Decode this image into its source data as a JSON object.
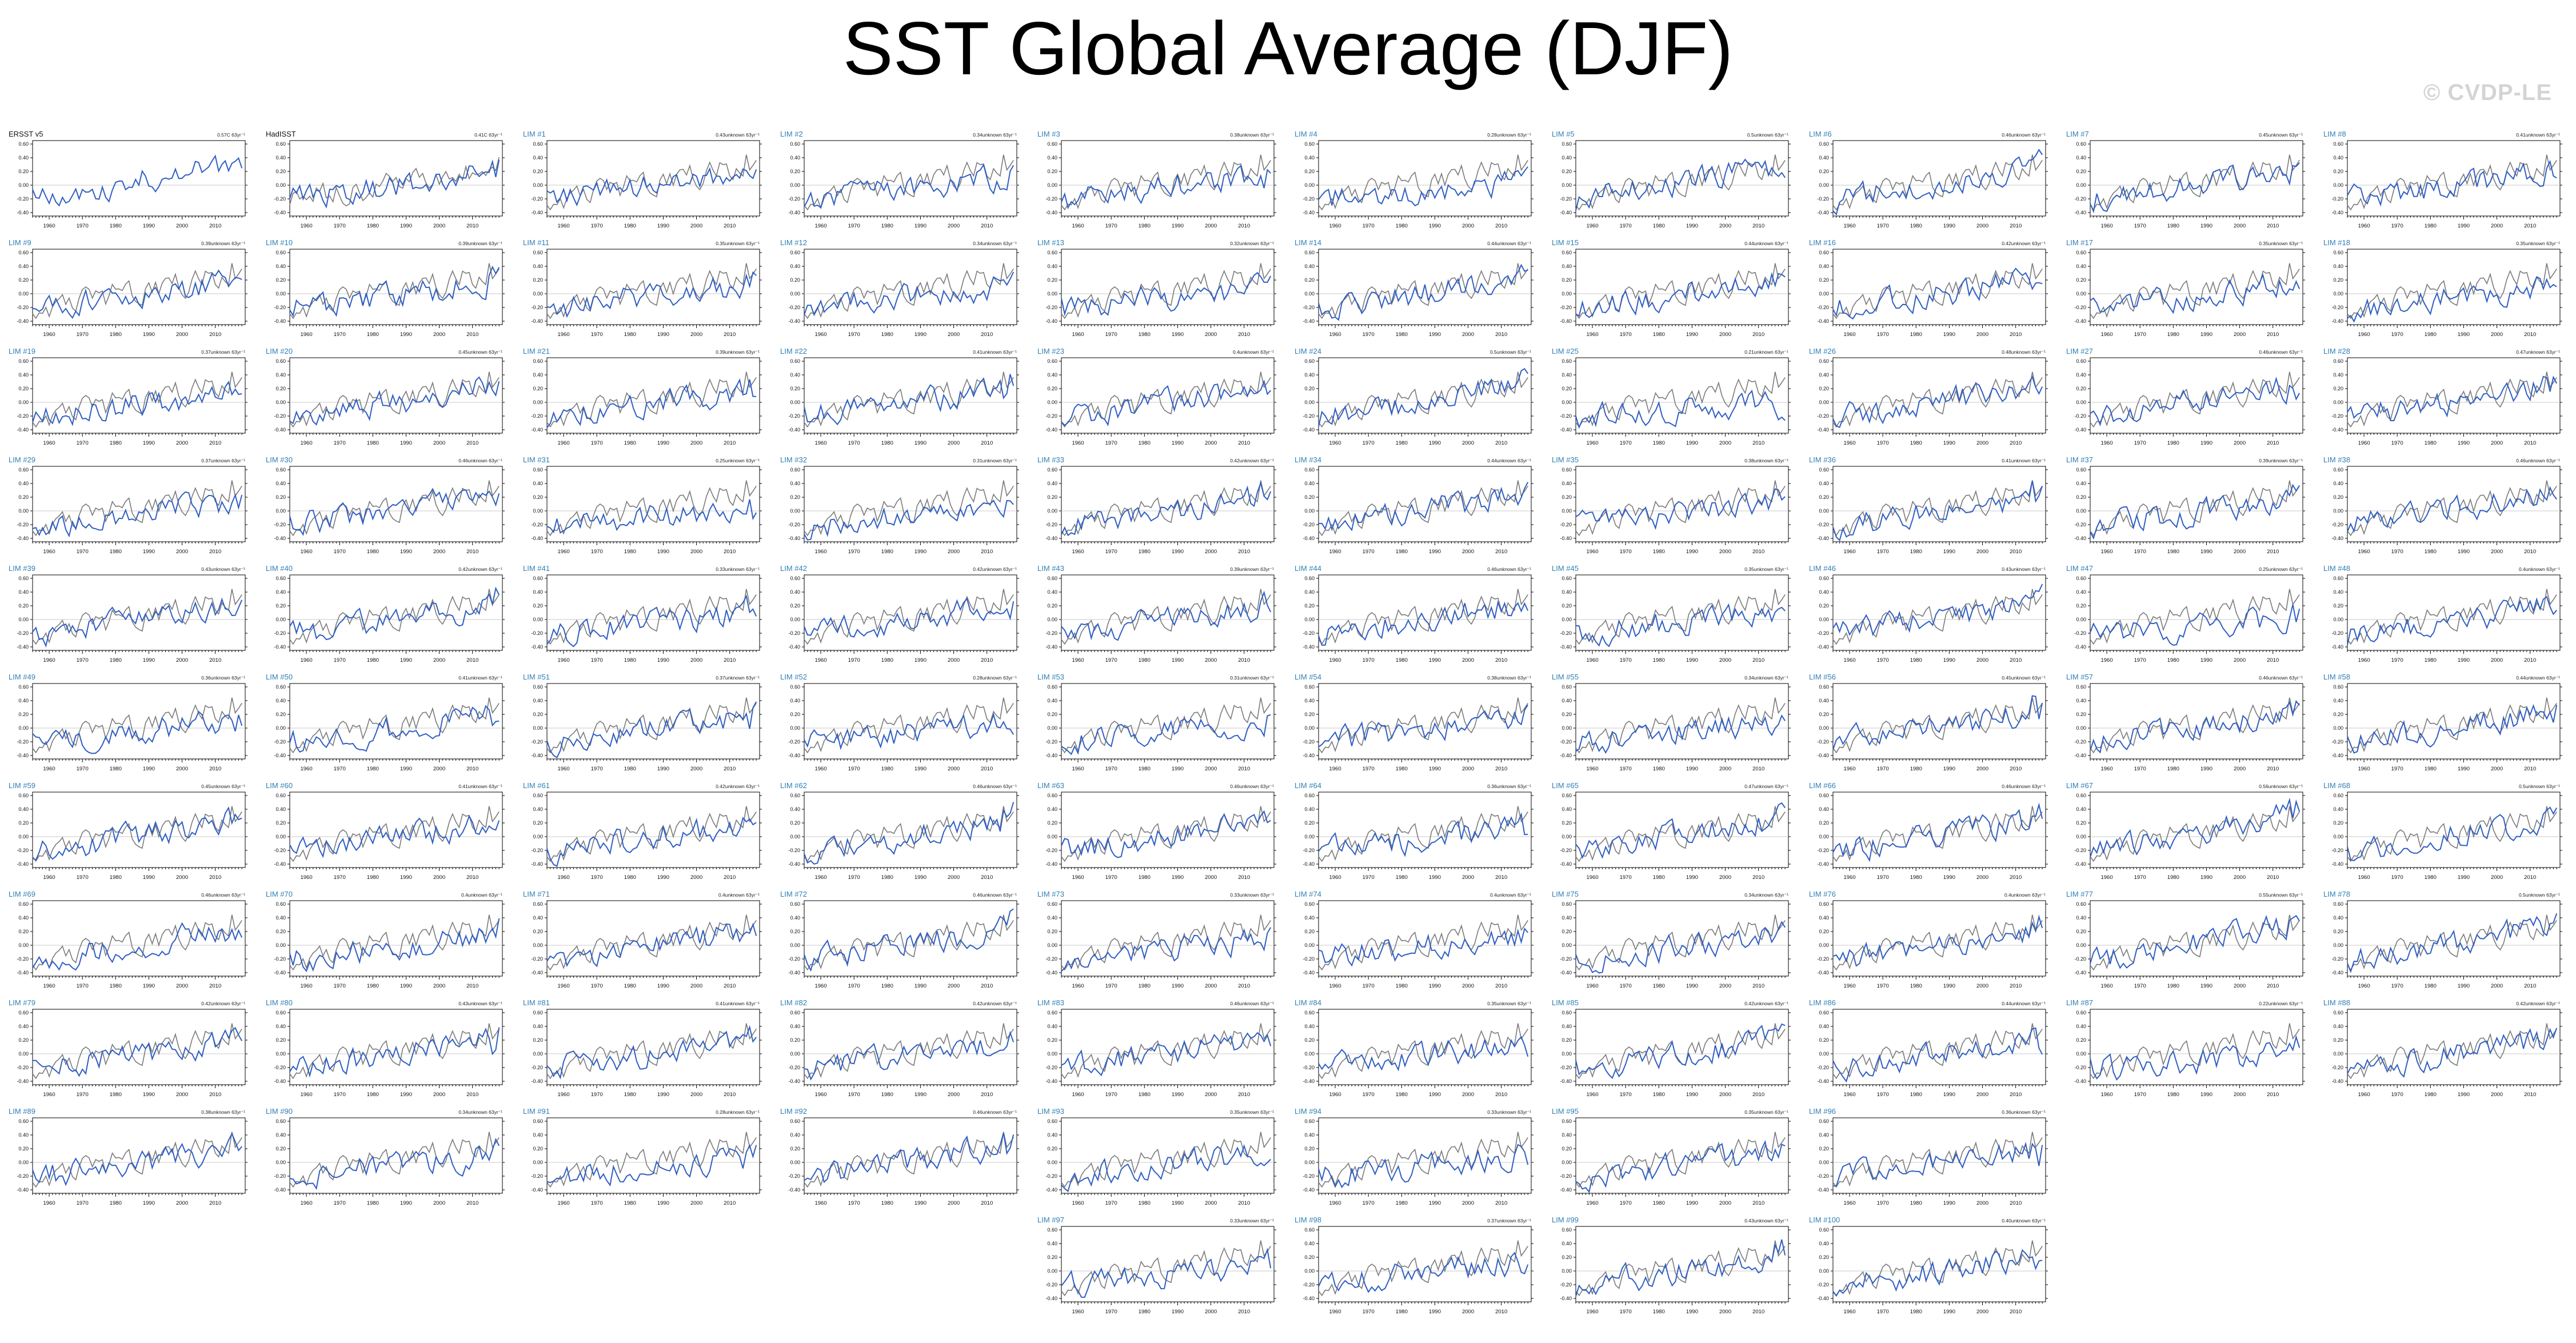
{
  "page": {
    "title": "SST Global Average (DJF)",
    "watermark": "© CVDP-LE"
  },
  "colors": {
    "observed": "#7a7a7a",
    "model": "#2f5ec2",
    "label_obs": "#111111",
    "label_model": "#2f7fb5",
    "zero_line": "#c8c8c8"
  },
  "chart_data": {
    "type": "line",
    "xlim": [
      1955,
      2019
    ],
    "ylim": [
      -0.45,
      0.65
    ],
    "xticks": [
      1960,
      1970,
      1980,
      1990,
      2000,
      2010
    ],
    "xtick_labels": [
      "1960",
      "1970",
      "1980",
      "1990",
      "2000",
      "2010"
    ],
    "yticks": [
      -0.4,
      -0.2,
      0.0,
      0.2,
      0.4,
      0.6
    ],
    "ytick_labels": [
      "-0.40",
      "-0.20",
      "0.00",
      "0.20",
      "0.40",
      "0.60"
    ],
    "years": [
      1955,
      2018
    ],
    "panels": [
      {
        "label": "ERSST v5",
        "trend": "0.57C 63yr⁻¹",
        "obs": true
      },
      {
        "label": "HadISST",
        "trend": "0.41C 63yr⁻¹",
        "obs": true
      },
      {
        "label": "LIM #1",
        "trend": "0.43unknown 63yr⁻¹"
      },
      {
        "label": "LIM #2",
        "trend": "0.34unknown 63yr⁻¹"
      },
      {
        "label": "LIM #3",
        "trend": "0.38unknown 63yr⁻¹"
      },
      {
        "label": "LIM #4",
        "trend": "0.28unknown 63yr⁻¹"
      },
      {
        "label": "LIM #5",
        "trend": "0.5unknown 63yr⁻¹"
      },
      {
        "label": "LIM #6",
        "trend": "0.46unknown 63yr⁻¹"
      },
      {
        "label": "LIM #7",
        "trend": "0.45unknown 63yr⁻¹"
      },
      {
        "label": "LIM #8",
        "trend": "0.41unknown 63yr⁻¹"
      },
      {
        "label": "LIM #9",
        "trend": "0.39unknown 63yr⁻¹"
      },
      {
        "label": "LIM #10",
        "trend": "0.39unknown 63yr⁻¹"
      },
      {
        "label": "LIM #11",
        "trend": "0.35unknown 63yr⁻¹"
      },
      {
        "label": "LIM #12",
        "trend": "0.34unknown 63yr⁻¹"
      },
      {
        "label": "LIM #13",
        "trend": "0.32unknown 63yr⁻¹"
      },
      {
        "label": "LIM #14",
        "trend": "0.44unknown 63yr⁻¹"
      },
      {
        "label": "LIM #15",
        "trend": "0.44unknown 63yr⁻¹"
      },
      {
        "label": "LIM #16",
        "trend": "0.42unknown 63yr⁻¹"
      },
      {
        "label": "LIM #17",
        "trend": "0.35unknown 63yr⁻¹"
      },
      {
        "label": "LIM #18",
        "trend": "0.35unknown 63yr⁻¹"
      },
      {
        "label": "LIM #19",
        "trend": "0.37unknown 63yr⁻¹"
      },
      {
        "label": "LIM #20",
        "trend": "0.45unknown 63yr⁻¹"
      },
      {
        "label": "LIM #21",
        "trend": "0.39unknown 63yr⁻¹"
      },
      {
        "label": "LIM #22",
        "trend": "0.41unknown 63yr⁻¹"
      },
      {
        "label": "LIM #23",
        "trend": "0.4unknown 63yr⁻¹"
      },
      {
        "label": "LIM #24",
        "trend": "0.5unknown 63yr⁻¹"
      },
      {
        "label": "LIM #25",
        "trend": "0.21unknown 63yr⁻¹"
      },
      {
        "label": "LIM #26",
        "trend": "0.48unknown 63yr⁻¹"
      },
      {
        "label": "LIM #27",
        "trend": "0.46unknown 63yr⁻¹"
      },
      {
        "label": "LIM #28",
        "trend": "0.47unknown 63yr⁻¹"
      },
      {
        "label": "LIM #29",
        "trend": "0.37unknown 63yr⁻¹"
      },
      {
        "label": "LIM #30",
        "trend": "0.46unknown 63yr⁻¹"
      },
      {
        "label": "LIM #31",
        "trend": "0.25unknown 63yr⁻¹"
      },
      {
        "label": "LIM #32",
        "trend": "0.31unknown 63yr⁻¹"
      },
      {
        "label": "LIM #33",
        "trend": "0.42unknown 63yr⁻¹"
      },
      {
        "label": "LIM #34",
        "trend": "0.44unknown 63yr⁻¹"
      },
      {
        "label": "LIM #35",
        "trend": "0.38unknown 63yr⁻¹"
      },
      {
        "label": "LIM #36",
        "trend": "0.41unknown 63yr⁻¹"
      },
      {
        "label": "LIM #37",
        "trend": "0.39unknown 63yr⁻¹"
      },
      {
        "label": "LIM #38",
        "trend": "0.46unknown 63yr⁻¹"
      },
      {
        "label": "LIM #39",
        "trend": "0.43unknown 63yr⁻¹"
      },
      {
        "label": "LIM #40",
        "trend": "0.42unknown 63yr⁻¹"
      },
      {
        "label": "LIM #41",
        "trend": "0.33unknown 63yr⁻¹"
      },
      {
        "label": "LIM #42",
        "trend": "0.42unknown 63yr⁻¹"
      },
      {
        "label": "LIM #43",
        "trend": "0.39unknown 63yr⁻¹"
      },
      {
        "label": "LIM #44",
        "trend": "0.46unknown 63yr⁻¹"
      },
      {
        "label": "LIM #45",
        "trend": "0.35unknown 63yr⁻¹"
      },
      {
        "label": "LIM #46",
        "trend": "0.43unknown 63yr⁻¹"
      },
      {
        "label": "LIM #47",
        "trend": "0.25unknown 63yr⁻¹"
      },
      {
        "label": "LIM #48",
        "trend": "0.4unknown 63yr⁻¹"
      },
      {
        "label": "LIM #49",
        "trend": "0.36unknown 63yr⁻¹"
      },
      {
        "label": "LIM #50",
        "trend": "0.41unknown 63yr⁻¹"
      },
      {
        "label": "LIM #51",
        "trend": "0.37unknown 63yr⁻¹"
      },
      {
        "label": "LIM #52",
        "trend": "0.28unknown 63yr⁻¹"
      },
      {
        "label": "LIM #53",
        "trend": "0.31unknown 63yr⁻¹"
      },
      {
        "label": "LIM #54",
        "trend": "0.38unknown 63yr⁻¹"
      },
      {
        "label": "LIM #55",
        "trend": "0.34unknown 63yr⁻¹"
      },
      {
        "label": "LIM #56",
        "trend": "0.45unknown 63yr⁻¹"
      },
      {
        "label": "LIM #57",
        "trend": "0.46unknown 63yr⁻¹"
      },
      {
        "label": "LIM #58",
        "trend": "0.44unknown 63yr⁻¹"
      },
      {
        "label": "LIM #59",
        "trend": "0.45unknown 63yr⁻¹"
      },
      {
        "label": "LIM #60",
        "trend": "0.41unknown 63yr⁻¹"
      },
      {
        "label": "LIM #61",
        "trend": "0.42unknown 63yr⁻¹"
      },
      {
        "label": "LIM #62",
        "trend": "0.46unknown 63yr⁻¹"
      },
      {
        "label": "LIM #63",
        "trend": "0.46unknown 63yr⁻¹"
      },
      {
        "label": "LIM #64",
        "trend": "0.36unknown 63yr⁻¹"
      },
      {
        "label": "LIM #65",
        "trend": "0.47unknown 63yr⁻¹"
      },
      {
        "label": "LIM #66",
        "trend": "0.46unknown 63yr⁻¹"
      },
      {
        "label": "LIM #67",
        "trend": "0.56unknown 63yr⁻¹"
      },
      {
        "label": "LIM #68",
        "trend": "0.5unknown 63yr⁻¹"
      },
      {
        "label": "LIM #69",
        "trend": "0.46unknown 63yr⁻¹"
      },
      {
        "label": "LIM #70",
        "trend": "0.4unknown 63yr⁻¹"
      },
      {
        "label": "LIM #71",
        "trend": "0.4unknown 63yr⁻¹"
      },
      {
        "label": "LIM #72",
        "trend": "0.46unknown 63yr⁻¹"
      },
      {
        "label": "LIM #73",
        "trend": "0.33unknown 63yr⁻¹"
      },
      {
        "label": "LIM #74",
        "trend": "0.4unknown 63yr⁻¹"
      },
      {
        "label": "LIM #75",
        "trend": "0.34unknown 63yr⁻¹"
      },
      {
        "label": "LIM #76",
        "trend": "0.4unknown 63yr⁻¹"
      },
      {
        "label": "LIM #77",
        "trend": "0.55unknown 63yr⁻¹"
      },
      {
        "label": "LIM #78",
        "trend": "0.5unknown 63yr⁻¹"
      },
      {
        "label": "LIM #79",
        "trend": "0.42unknown 63yr⁻¹"
      },
      {
        "label": "LIM #80",
        "trend": "0.43unknown 63yr⁻¹"
      },
      {
        "label": "LIM #81",
        "trend": "0.41unknown 63yr⁻¹"
      },
      {
        "label": "LIM #82",
        "trend": "0.42unknown 63yr⁻¹"
      },
      {
        "label": "LIM #83",
        "trend": "0.46unknown 63yr⁻¹"
      },
      {
        "label": "LIM #84",
        "trend": "0.35unknown 63yr⁻¹"
      },
      {
        "label": "LIM #85",
        "trend": "0.42unknown 63yr⁻¹"
      },
      {
        "label": "LIM #86",
        "trend": "0.44unknown 63yr⁻¹"
      },
      {
        "label": "LIM #87",
        "trend": "0.22unknown 63yr⁻¹"
      },
      {
        "label": "LIM #88",
        "trend": "0.42unknown 63yr⁻¹"
      },
      {
        "label": "LIM #89",
        "trend": "0.38unknown 63yr⁻¹"
      },
      {
        "label": "LIM #90",
        "trend": "0.34unknown 63yr⁻¹"
      },
      {
        "label": "LIM #91",
        "trend": "0.28unknown 63yr⁻¹"
      },
      {
        "label": "LIM #92",
        "trend": "0.46unknown 63yr⁻¹"
      },
      {
        "label": "LIM #93",
        "trend": "0.35unknown 63yr⁻¹"
      },
      {
        "label": "LIM #94",
        "trend": "0.33unknown 63yr⁻¹"
      },
      {
        "label": "LIM #95",
        "trend": "0.35unknown 63yr⁻¹"
      },
      {
        "label": "LIM #96",
        "trend": "0.36unknown 63yr⁻¹"
      },
      {
        "label": "LIM #97",
        "trend": "0.33unknown 63yr⁻¹"
      },
      {
        "label": "LIM #98",
        "trend": "0.37unknown 63yr⁻¹"
      },
      {
        "label": "LIM #99",
        "trend": "0.43unknown 63yr⁻¹"
      },
      {
        "label": "LIM #100",
        "trend": "0.40unknown 63yr⁻¹"
      }
    ]
  }
}
